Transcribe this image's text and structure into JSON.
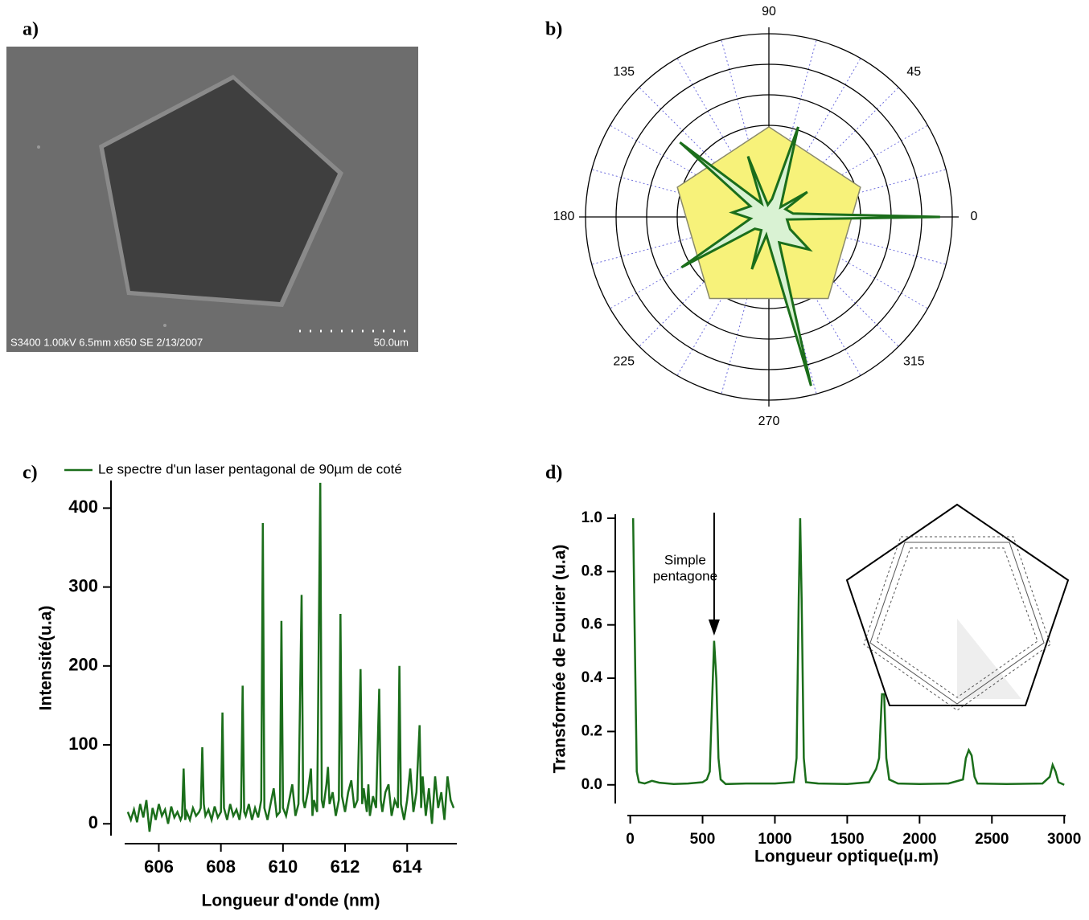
{
  "image": {
    "label": "a)",
    "caption": "S3400 1.00kV 6.5mm x650 SE  2/13/2007",
    "scale_label": "50.0um"
  },
  "chart_data": [
    {
      "type": "polar",
      "label": "b)",
      "rlim": [
        0,
        6
      ],
      "rticks": [
        1,
        2,
        3,
        4,
        5,
        6
      ],
      "angle_ticks": [
        0,
        45,
        90,
        135,
        180,
        225,
        270,
        315
      ],
      "angle_grid": [
        0,
        15,
        30,
        45,
        60,
        75,
        90,
        105,
        120,
        135,
        150,
        165,
        180,
        195,
        210,
        225,
        240,
        255,
        270,
        285,
        300,
        315,
        330,
        345
      ],
      "series": [
        {
          "color": "#f7f27a",
          "edge": "#8a8a6a",
          "theta": [
            90,
            162,
            234,
            306,
            18
          ],
          "r": [
            2.95,
            3.15,
            3.3,
            3.3,
            3.15
          ]
        },
        {
          "color": "#d9f2d3",
          "edge": "#1b6e1b",
          "theta": [
            0,
            8,
            25,
            33,
            40,
            72,
            80,
            95,
            109,
            118,
            140,
            150,
            173,
            185,
            210,
            220,
            240,
            252,
            262,
            284,
            292,
            321,
            330,
            352
          ],
          "r": [
            5.6,
            0.8,
            0.6,
            1.5,
            0.5,
            3.1,
            0.6,
            0.4,
            2.1,
            0.5,
            3.8,
            0.7,
            1.2,
            0.6,
            3.3,
            0.6,
            0.5,
            1.8,
            0.6,
            5.7,
            0.9,
            1.7,
            0.8,
            0.6
          ]
        }
      ]
    },
    {
      "type": "line",
      "label": "c)",
      "xlabel": "Longueur d'onde (nm)",
      "ylabel": "Intensité(u.a)",
      "xlim": [
        604.9,
        615.6
      ],
      "ylim": [
        -15,
        435
      ],
      "xticks": [
        606,
        608,
        610,
        612,
        614
      ],
      "yticks": [
        0,
        100,
        200,
        300,
        400
      ],
      "series": [
        {
          "name": "Le spectre d'un laser pentagonal de 90µm de coté",
          "color": "#1b6e1b",
          "x": [
            605.0,
            605.1,
            605.2,
            605.3,
            605.4,
            605.5,
            605.6,
            605.7,
            605.8,
            605.9,
            606.0,
            606.1,
            606.2,
            606.3,
            606.4,
            606.5,
            606.6,
            606.7,
            606.75,
            606.8,
            606.85,
            606.9,
            607.0,
            607.1,
            607.2,
            607.3,
            607.35,
            607.4,
            607.45,
            607.5,
            607.6,
            607.7,
            607.8,
            607.9,
            608.0,
            608.05,
            608.1,
            608.2,
            608.3,
            608.4,
            608.5,
            608.6,
            608.65,
            608.7,
            608.75,
            608.8,
            608.9,
            609.0,
            609.1,
            609.2,
            609.3,
            609.35,
            609.4,
            609.5,
            609.6,
            609.7,
            609.8,
            609.9,
            609.95,
            610.0,
            610.1,
            610.2,
            610.3,
            610.4,
            610.5,
            610.6,
            610.65,
            610.7,
            610.8,
            610.9,
            610.95,
            611.0,
            611.1,
            611.2,
            611.25,
            611.3,
            611.4,
            611.45,
            611.5,
            611.6,
            611.7,
            611.8,
            611.85,
            611.9,
            612.0,
            612.1,
            612.2,
            612.3,
            612.4,
            612.5,
            612.55,
            612.6,
            612.7,
            612.75,
            612.8,
            612.9,
            613.0,
            613.1,
            613.15,
            613.2,
            613.3,
            613.4,
            613.5,
            613.6,
            613.7,
            613.75,
            613.8,
            613.9,
            614.0,
            614.1,
            614.2,
            614.3,
            614.4,
            614.45,
            614.5,
            614.6,
            614.7,
            614.8,
            614.9,
            615.0,
            615.1,
            615.2,
            615.3,
            615.4,
            615.5
          ],
          "values": [
            15,
            5,
            18,
            2,
            25,
            8,
            30,
            -10,
            20,
            5,
            25,
            10,
            18,
            0,
            22,
            8,
            15,
            5,
            10,
            70,
            5,
            15,
            5,
            20,
            10,
            15,
            20,
            97,
            25,
            10,
            18,
            5,
            22,
            8,
            15,
            141,
            20,
            5,
            25,
            10,
            18,
            5,
            20,
            175,
            15,
            10,
            25,
            5,
            20,
            8,
            30,
            381,
            20,
            5,
            25,
            45,
            10,
            15,
            257,
            20,
            10,
            30,
            50,
            10,
            25,
            290,
            30,
            20,
            40,
            70,
            10,
            30,
            15,
            432,
            30,
            20,
            50,
            72,
            25,
            40,
            10,
            30,
            266,
            35,
            15,
            40,
            55,
            20,
            30,
            196,
            25,
            45,
            15,
            50,
            10,
            35,
            20,
            171,
            30,
            15,
            40,
            50,
            10,
            30,
            20,
            200,
            25,
            5,
            30,
            70,
            15,
            40,
            125,
            20,
            60,
            10,
            45,
            0,
            60,
            20,
            40,
            5,
            60,
            30,
            20
          ]
        }
      ]
    },
    {
      "type": "line",
      "label": "d)",
      "xlabel": "Longueur optique(µ.m)",
      "ylabel": "Transformée de Fourier (u.a)",
      "xlim": [
        -20,
        3010
      ],
      "ylim": [
        -0.07,
        1.015
      ],
      "xticks": [
        0,
        500,
        1000,
        1500,
        2000,
        2500,
        3000
      ],
      "yticks": [
        {
          "value": 0,
          "label": "0.0"
        },
        0.2,
        0.4,
        0.6,
        0.8,
        {
          "value": 1,
          "label": "1.0"
        }
      ],
      "annotation": {
        "text": [
          "Simple",
          "pentagone"
        ],
        "x": 580,
        "y": 0.56
      },
      "series": [
        {
          "color": "#1b6e1b",
          "x": [
            20,
            30,
            45,
            60,
            100,
            150,
            200,
            300,
            400,
            500,
            530,
            550,
            565,
            580,
            595,
            610,
            625,
            660,
            800,
            1000,
            1130,
            1150,
            1165,
            1175,
            1185,
            1200,
            1215,
            1300,
            1500,
            1650,
            1700,
            1720,
            1740,
            1755,
            1770,
            1790,
            1850,
            2000,
            2200,
            2300,
            2320,
            2340,
            2360,
            2380,
            2400,
            2600,
            2850,
            2900,
            2920,
            2940,
            2960,
            3000
          ],
          "values": [
            1.0,
            0.6,
            0.05,
            0.01,
            0.005,
            0.015,
            0.008,
            0.003,
            0.005,
            0.01,
            0.02,
            0.05,
            0.3,
            0.54,
            0.4,
            0.1,
            0.02,
            0.003,
            0.005,
            0.005,
            0.01,
            0.1,
            0.7,
            1.0,
            0.7,
            0.1,
            0.01,
            0.005,
            0.003,
            0.01,
            0.06,
            0.1,
            0.34,
            0.34,
            0.1,
            0.02,
            0.005,
            0.003,
            0.005,
            0.02,
            0.1,
            0.13,
            0.11,
            0.03,
            0.005,
            0.003,
            0.005,
            0.03,
            0.075,
            0.05,
            0.01,
            0.0
          ]
        }
      ]
    }
  ]
}
